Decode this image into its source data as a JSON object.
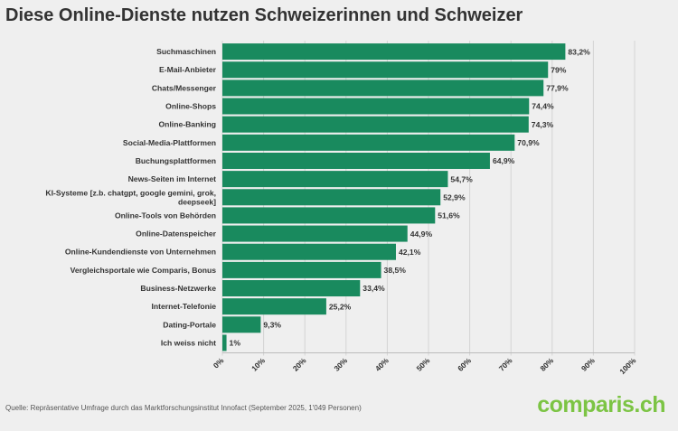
{
  "title": "Diese Online-Dienste nutzen Schweizerinnen und Schweizer",
  "footnote": "Quelle: Repräsentative Umfrage durch das Marktforschungsinstitut Innofact (September 2025, 1'049 Personen)",
  "logo": {
    "pre": "c",
    "mid": "o",
    "post": "mparis.ch"
  },
  "colors": {
    "bar": "#198a5e",
    "grid": "#d4d4d4",
    "text": "#333333",
    "logo": "#7cc444"
  },
  "chart_data": {
    "type": "bar",
    "orientation": "horizontal",
    "categories": [
      "Suchmaschinen",
      "E-Mail-Anbieter",
      "Chats/Messenger",
      "Online-Shops",
      "Online-Banking",
      "Social-Media-Plattformen",
      "Buchungsplattformen",
      "News-Seiten im Internet",
      [
        "KI-Systeme [z.b. chatgpt, google gemini, grok,",
        "deepseek]"
      ],
      "Online-Tools von Behörden",
      "Online-Datenspeicher",
      "Online-Kundendienste von Unternehmen",
      "Vergleichsportale wie Comparis, Bonus",
      "Business-Netzwerke",
      "Internet-Telefonie",
      "Dating-Portale",
      "Ich weiss nicht"
    ],
    "values": [
      83.2,
      79,
      77.9,
      74.4,
      74.3,
      70.9,
      64.9,
      54.7,
      52.9,
      51.6,
      44.9,
      42.1,
      38.5,
      33.4,
      25.2,
      9.3,
      1
    ],
    "value_labels": [
      "83,2%",
      "79%",
      "77,9%",
      "74,4%",
      "74,3%",
      "70,9%",
      "64,9%",
      "54,7%",
      "52,9%",
      "51,6%",
      "44,9%",
      "42,1%",
      "38,5%",
      "33,4%",
      "25,2%",
      "9,3%",
      "1%"
    ],
    "xlim": [
      0,
      100
    ],
    "xticks": [
      0,
      10,
      20,
      30,
      40,
      50,
      60,
      70,
      80,
      90,
      100
    ],
    "xtick_labels": [
      "0%",
      "10%",
      "20%",
      "30%",
      "40%",
      "50%",
      "60%",
      "70%",
      "80%",
      "90%",
      "100%"
    ],
    "grid": true
  }
}
